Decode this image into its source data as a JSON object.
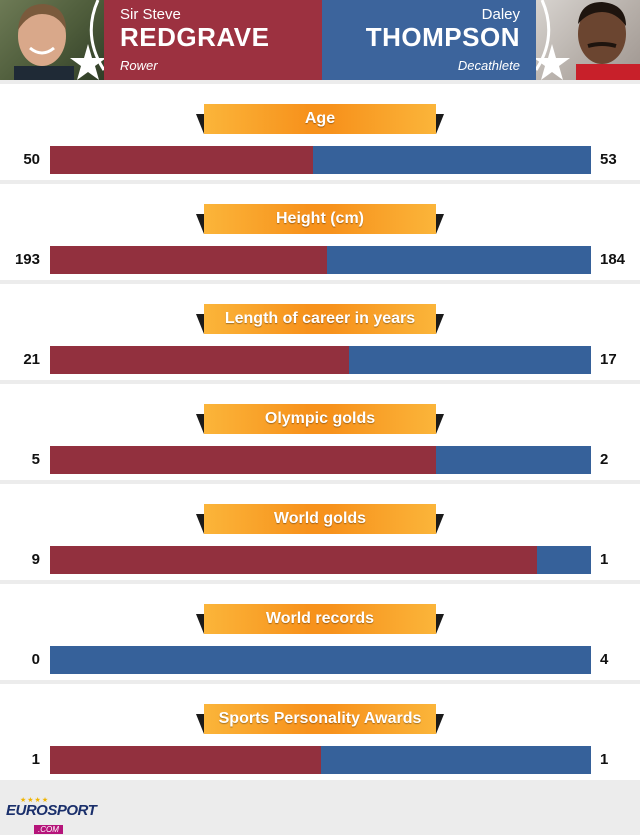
{
  "header": {
    "left": {
      "first": "Sir Steve",
      "last": "REDGRAVE",
      "sport": "Rower",
      "photo": "steve-redgrave-photo"
    },
    "right": {
      "first": "Daley",
      "last": "THOMPSON",
      "sport": "Decathlete",
      "photo": "daley-thompson-photo"
    }
  },
  "colors": {
    "left": "#92303e",
    "right": "#36619a",
    "banner": "#f7921c"
  },
  "chart_data": {
    "type": "bar",
    "series": [
      {
        "name": "REDGRAVE",
        "values": [
          50,
          193,
          21,
          5,
          9,
          0,
          1
        ]
      },
      {
        "name": "THOMPSON",
        "values": [
          53,
          184,
          17,
          2,
          1,
          4,
          1
        ]
      }
    ],
    "categories": [
      "Age",
      "Height (cm)",
      "Length of career in years",
      "Olympic golds",
      "World golds",
      "World records",
      "Sports Personality Awards"
    ],
    "stacking": "normalized-100"
  },
  "stats": [
    {
      "label": "Age",
      "left": "50",
      "right": "53"
    },
    {
      "label": "Height (cm)",
      "left": "193",
      "right": "184"
    },
    {
      "label": "Length of career in years",
      "left": "21",
      "right": "17"
    },
    {
      "label": "Olympic golds",
      "left": "5",
      "right": "2"
    },
    {
      "label": "World golds",
      "left": "9",
      "right": "1"
    },
    {
      "label": "World records",
      "left": "0",
      "right": "4"
    },
    {
      "label": "Sports Personality Awards",
      "left": "1",
      "right": "1"
    }
  ],
  "logo": {
    "main": "EUROSPORT",
    "sub": ".COM"
  }
}
